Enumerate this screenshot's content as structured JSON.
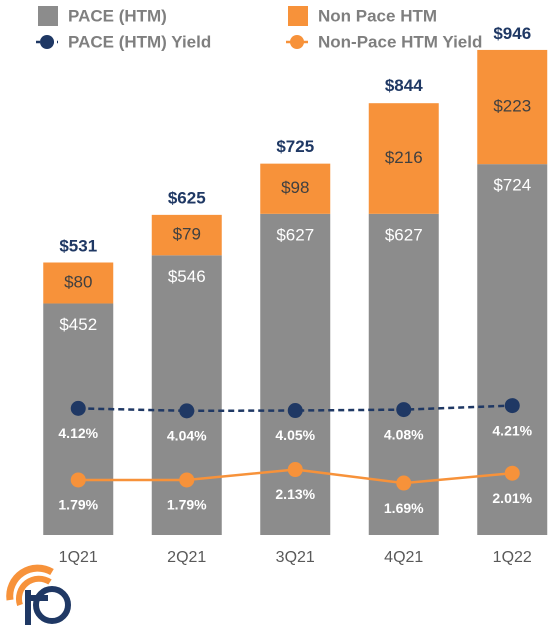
{
  "chart_data": {
    "type": "bar",
    "stacked": true,
    "categories": [
      "1Q21",
      "2Q21",
      "3Q21",
      "4Q21",
      "1Q22"
    ],
    "ylim": [
      100,
      1000
    ],
    "y2lim": [
      0,
      15
    ],
    "series": [
      {
        "name": "PACE (HTM)",
        "color": "#8c8c8c",
        "values": [
          452,
          546,
          627,
          627,
          724
        ],
        "value_labels": [
          "$452",
          "$546",
          "$627",
          "$627",
          "$724"
        ]
      },
      {
        "name": "Non Pace HTM",
        "color": "#f7923a",
        "values": [
          80,
          79,
          98,
          216,
          223
        ],
        "value_labels": [
          "$80",
          "$79",
          "$98",
          "$216",
          "$223"
        ]
      },
      {
        "name": "PACE (HTM) Yield",
        "type": "line",
        "axis": "y2",
        "line_style": "dashed",
        "color": "#1f3864",
        "values": [
          4.12,
          4.04,
          4.05,
          4.08,
          4.21
        ],
        "value_labels": [
          "4.12%",
          "4.04%",
          "4.05%",
          "4.08%",
          "4.21%"
        ]
      },
      {
        "name": "Non-Pace HTM Yield",
        "type": "line",
        "axis": "y2",
        "line_style": "solid",
        "color": "#f7923a",
        "values": [
          1.79,
          1.79,
          2.13,
          1.69,
          2.01
        ],
        "value_labels": [
          "1.79%",
          "1.79%",
          "2.13%",
          "1.69%",
          "2.01%"
        ]
      }
    ],
    "totals": [
      531,
      625,
      725,
      844,
      946
    ],
    "totals_labels": [
      "$531",
      "$625",
      "$725",
      "$844",
      "$946"
    ]
  }
}
